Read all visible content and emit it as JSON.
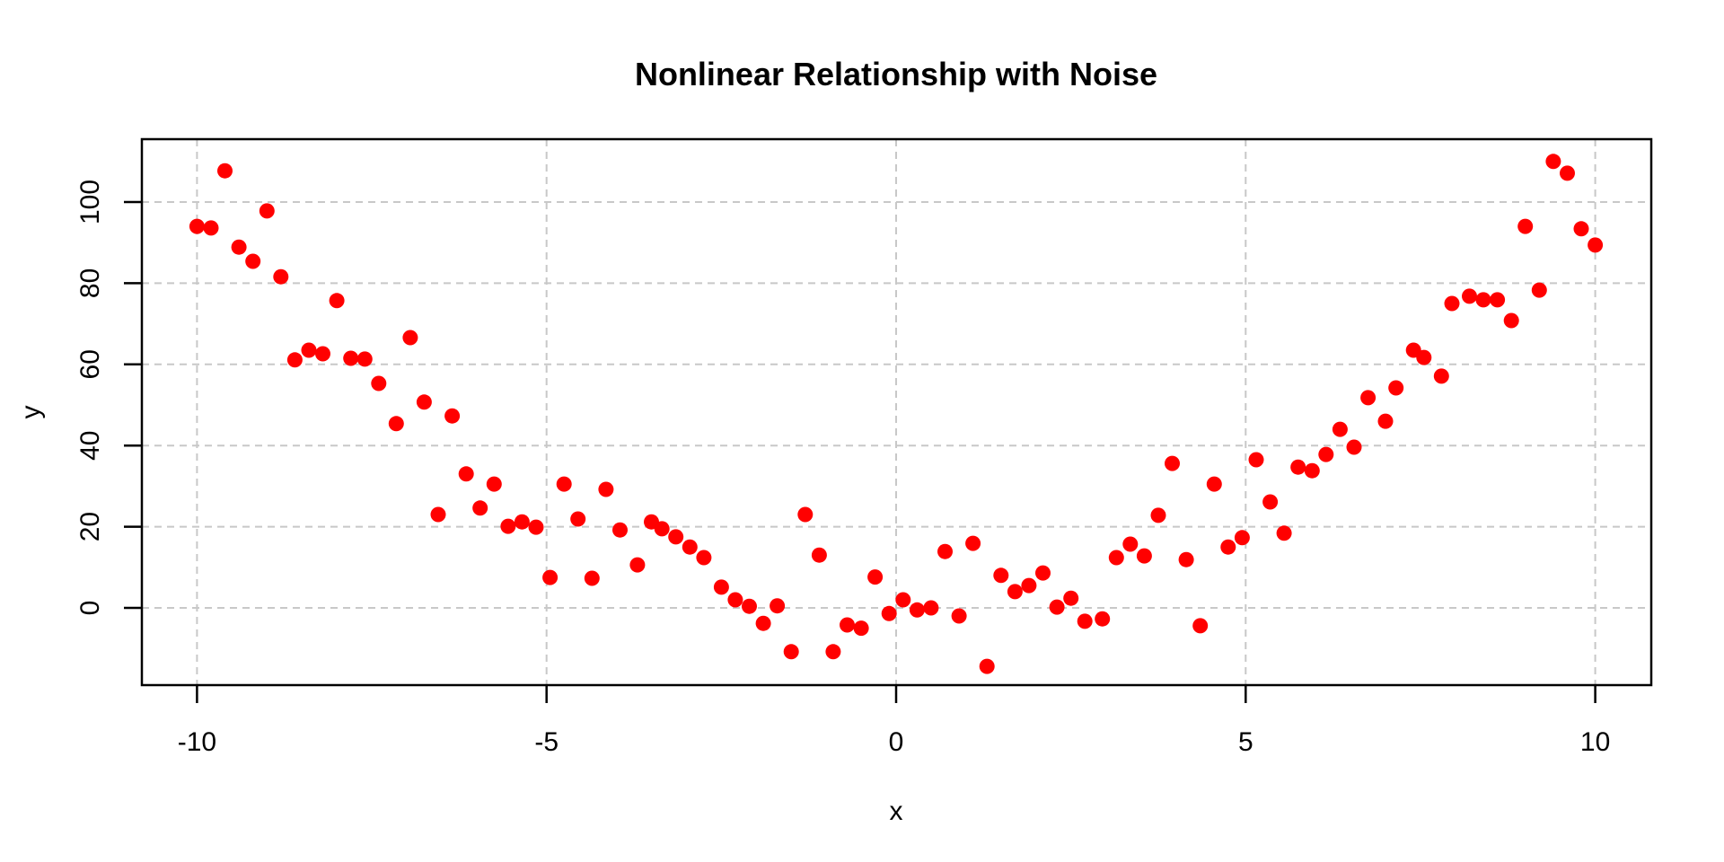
{
  "chart_data": {
    "type": "scatter",
    "title": "Nonlinear Relationship with Noise",
    "xlabel": "x",
    "ylabel": "y",
    "x_ticks": [
      -10,
      -5,
      0,
      5,
      10
    ],
    "y_ticks": [
      0,
      20,
      40,
      60,
      80,
      100
    ],
    "xlim": [
      -10.8,
      10.8
    ],
    "ylim": [
      -19.1,
      115.5
    ],
    "grid": "dashed",
    "legend_position": "none",
    "point_color": "#FF0000",
    "grid_color": "#C8C8C8",
    "frame_color": "#000000",
    "points": [
      [
        -10.0,
        94.0
      ],
      [
        -9.8,
        93.6
      ],
      [
        -9.6,
        107.7
      ],
      [
        -9.4,
        88.9
      ],
      [
        -9.2,
        85.4
      ],
      [
        -9.0,
        97.8
      ],
      [
        -8.8,
        81.6
      ],
      [
        -8.6,
        61.1
      ],
      [
        -8.4,
        63.5
      ],
      [
        -8.2,
        62.6
      ],
      [
        -8.0,
        75.7
      ],
      [
        -7.8,
        61.5
      ],
      [
        -7.6,
        61.3
      ],
      [
        -7.4,
        55.3
      ],
      [
        -7.15,
        45.4
      ],
      [
        -6.95,
        66.6
      ],
      [
        -6.75,
        50.7
      ],
      [
        -6.55,
        23.0
      ],
      [
        -6.35,
        47.3
      ],
      [
        -6.15,
        33.0
      ],
      [
        -5.95,
        24.6
      ],
      [
        -5.75,
        30.5
      ],
      [
        -5.55,
        20.1
      ],
      [
        -5.35,
        21.2
      ],
      [
        -5.15,
        19.9
      ],
      [
        -4.95,
        7.5
      ],
      [
        -4.75,
        30.5
      ],
      [
        -4.55,
        21.9
      ],
      [
        -4.35,
        7.3
      ],
      [
        -4.15,
        29.2
      ],
      [
        -3.95,
        19.2
      ],
      [
        -3.7,
        10.6
      ],
      [
        -3.5,
        21.2
      ],
      [
        -3.35,
        19.5
      ],
      [
        -3.15,
        17.5
      ],
      [
        -2.95,
        15.0
      ],
      [
        -2.75,
        12.4
      ],
      [
        -2.5,
        5.1
      ],
      [
        -2.3,
        2.0
      ],
      [
        -2.1,
        0.4
      ],
      [
        -1.9,
        -3.8
      ],
      [
        -1.7,
        0.5
      ],
      [
        -1.5,
        -10.8
      ],
      [
        -1.3,
        23.0
      ],
      [
        -1.1,
        13.0
      ],
      [
        -0.9,
        -10.8
      ],
      [
        -0.7,
        -4.2
      ],
      [
        -0.5,
        -5.0
      ],
      [
        -0.3,
        7.6
      ],
      [
        -0.1,
        -1.4
      ],
      [
        0.1,
        2.0
      ],
      [
        0.3,
        -0.5
      ],
      [
        0.5,
        0.0
      ],
      [
        0.7,
        13.9
      ],
      [
        0.9,
        -2.0
      ],
      [
        1.1,
        15.9
      ],
      [
        1.3,
        -14.4
      ],
      [
        1.5,
        8.0
      ],
      [
        1.7,
        4.0
      ],
      [
        1.9,
        5.5
      ],
      [
        2.1,
        8.6
      ],
      [
        2.3,
        0.2
      ],
      [
        2.5,
        2.4
      ],
      [
        2.7,
        -3.3
      ],
      [
        2.95,
        -2.7
      ],
      [
        3.15,
        12.4
      ],
      [
        3.35,
        15.7
      ],
      [
        3.55,
        12.8
      ],
      [
        3.75,
        22.8
      ],
      [
        3.95,
        35.6
      ],
      [
        4.15,
        11.9
      ],
      [
        4.35,
        -4.4
      ],
      [
        4.55,
        30.5
      ],
      [
        4.75,
        15.0
      ],
      [
        4.95,
        17.3
      ],
      [
        5.15,
        36.5
      ],
      [
        5.35,
        26.1
      ],
      [
        5.55,
        18.4
      ],
      [
        5.75,
        34.7
      ],
      [
        5.95,
        33.8
      ],
      [
        6.15,
        37.8
      ],
      [
        6.35,
        44.0
      ],
      [
        6.55,
        39.6
      ],
      [
        6.75,
        51.8
      ],
      [
        7.0,
        46.0
      ],
      [
        7.15,
        54.2
      ],
      [
        7.4,
        63.5
      ],
      [
        7.55,
        61.7
      ],
      [
        7.8,
        57.1
      ],
      [
        7.95,
        75.0
      ],
      [
        8.2,
        76.8
      ],
      [
        8.4,
        75.9
      ],
      [
        8.6,
        75.9
      ],
      [
        8.8,
        70.8
      ],
      [
        9.0,
        94.0
      ],
      [
        9.2,
        78.3
      ],
      [
        9.4,
        110.0
      ],
      [
        9.6,
        107.1
      ],
      [
        9.8,
        93.4
      ],
      [
        10.0,
        89.4
      ]
    ]
  }
}
